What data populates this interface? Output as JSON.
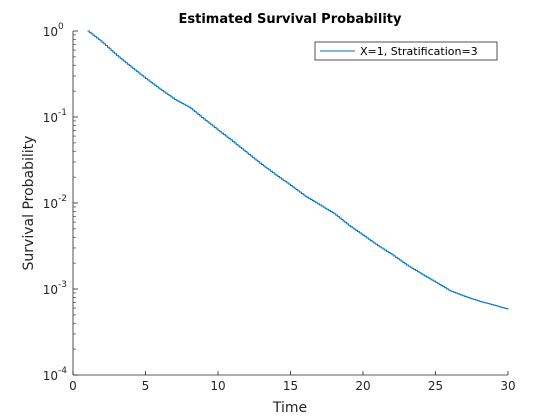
{
  "chart_data": {
    "type": "line",
    "title": "Estimated Survival Probability",
    "xlabel": "Time",
    "ylabel": "Survival Probability",
    "xlim": [
      0,
      30
    ],
    "ylim": [
      0.0001,
      1
    ],
    "yscale": "log",
    "grid": false,
    "legend_position": "top-right",
    "x_ticks": [
      "0",
      "5",
      "10",
      "15",
      "20",
      "25",
      "30"
    ],
    "y_ticks": [
      {
        "value": 1,
        "base": "10",
        "exp": "0"
      },
      {
        "value": 0.1,
        "base": "10",
        "exp": "-1"
      },
      {
        "value": 0.01,
        "base": "10",
        "exp": "-2"
      },
      {
        "value": 0.001,
        "base": "10",
        "exp": "-3"
      },
      {
        "value": 0.0001,
        "base": "10",
        "exp": "-4"
      }
    ],
    "series": [
      {
        "name": "X=1, Stratification=3",
        "color": "#0072bd",
        "x": [
          1.0,
          2.0,
          3.0,
          4.0,
          5.0,
          6.0,
          7.0,
          8.0,
          9.0,
          10.0,
          11.0,
          12.0,
          13.0,
          14.0,
          15.0,
          16.0,
          17.0,
          18.0,
          19.0,
          20.0,
          21.0,
          22.0,
          23.0,
          24.0,
          25.0,
          26.0,
          27.0,
          28.0,
          29.0,
          30.0
        ],
        "y": [
          1.0,
          0.74,
          0.52,
          0.38,
          0.28,
          0.21,
          0.16,
          0.13,
          0.095,
          0.07,
          0.052,
          0.038,
          0.028,
          0.021,
          0.016,
          0.012,
          0.0095,
          0.0075,
          0.0055,
          0.0042,
          0.0032,
          0.0025,
          0.0019,
          0.0015,
          0.0012,
          0.00095,
          0.00082,
          0.00072,
          0.00065,
          0.00058
        ]
      }
    ]
  }
}
